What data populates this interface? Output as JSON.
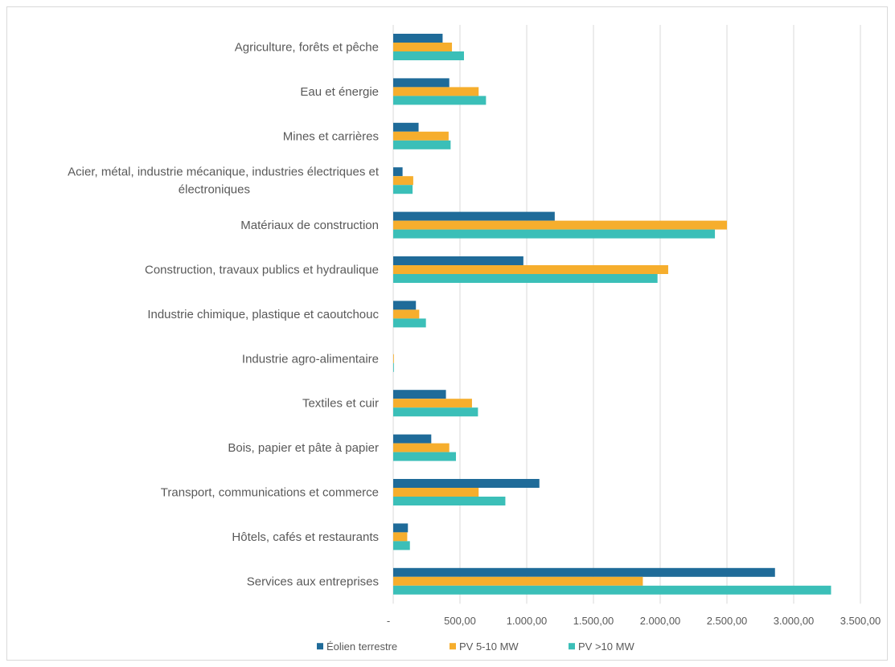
{
  "chart_data": {
    "type": "bar",
    "orientation": "horizontal",
    "categories": [
      "Agriculture, forêts et pêche",
      "Eau et énergie",
      "Mines et carrières",
      "Acier, métal, industrie mécanique, industries électriques et électroniques",
      "Matériaux de construction",
      "Construction, travaux publics et hydraulique",
      "Industrie chimique, plastique et caoutchouc",
      "Industrie agro-alimentaire",
      "Textiles et cuir",
      "Bois, papier et pâte à papier",
      "Transport, communications et commerce",
      "Hôtels, cafés et restaurants",
      "Services aux entreprises"
    ],
    "category_lines": [
      [
        "Agriculture, forêts et pêche"
      ],
      [
        "Eau et énergie"
      ],
      [
        "Mines et carrières"
      ],
      [
        "Acier, métal, industrie mécanique, industries électriques et",
        "électroniques"
      ],
      [
        "Matériaux de construction"
      ],
      [
        "Construction, travaux publics et hydraulique"
      ],
      [
        "Industrie chimique, plastique et caoutchouc"
      ],
      [
        "Industrie agro-alimentaire"
      ],
      [
        "Textiles et cuir"
      ],
      [
        "Bois, papier et pâte à papier"
      ],
      [
        "Transport, communications et commerce"
      ],
      [
        "Hôtels, cafés et restaurants"
      ],
      [
        "Services aux entreprises"
      ]
    ],
    "series": [
      {
        "name": "Éolien terrestre",
        "color": "#1f6b99",
        "values": [
          370,
          420,
          190,
          70,
          1210,
          975,
          170,
          0,
          395,
          285,
          1095,
          110,
          2860
        ]
      },
      {
        "name": "PV 5-10 MW",
        "color": "#f6ae2d",
        "values": [
          440,
          640,
          415,
          150,
          2500,
          2060,
          195,
          5,
          590,
          420,
          640,
          105,
          1870
        ]
      },
      {
        "name": "PV >10 MW",
        "color": "#3bbfb8",
        "values": [
          530,
          695,
          430,
          145,
          2410,
          1980,
          245,
          5,
          635,
          470,
          840,
          125,
          3280
        ]
      }
    ],
    "x_ticks": [
      "-",
      "500,00",
      "1.000,00",
      "1.500,00",
      "2.000,00",
      "2.500,00",
      "3.000,00",
      "3.500,00"
    ],
    "xlim": [
      0,
      3500
    ],
    "grid": true,
    "legend_position": "bottom",
    "title": "",
    "xlabel": "",
    "ylabel": ""
  }
}
